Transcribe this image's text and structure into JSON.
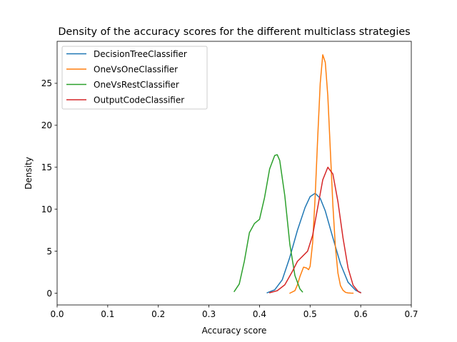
{
  "chart_data": {
    "type": "line",
    "title": "Density of the accuracy scores for the different multiclass strategies",
    "xlabel": "Accuracy score",
    "ylabel": "Density",
    "xlim": [
      0.0,
      0.7
    ],
    "ylim": [
      -1.4,
      30.0
    ],
    "xticks": [
      "0.0",
      "0.1",
      "0.2",
      "0.3",
      "0.4",
      "0.5",
      "0.6",
      "0.7"
    ],
    "yticks": [
      "0",
      "5",
      "10",
      "15",
      "20",
      "25"
    ],
    "grid": false,
    "legend_position": "top-left",
    "series": [
      {
        "name": "DecisionTreeClassifier",
        "color": "#1f77b4",
        "x": [
          0.415,
          0.43,
          0.445,
          0.46,
          0.475,
          0.49,
          0.5,
          0.51,
          0.52,
          0.53,
          0.545,
          0.56,
          0.575,
          0.59,
          0.6
        ],
        "y": [
          0.05,
          0.4,
          1.6,
          4.3,
          7.5,
          10.2,
          11.5,
          11.9,
          11.3,
          9.8,
          6.6,
          3.5,
          1.3,
          0.35,
          0.08
        ]
      },
      {
        "name": "OneVsOneClassifier",
        "color": "#ff7f0e",
        "x": [
          0.46,
          0.47,
          0.475,
          0.48,
          0.487,
          0.493,
          0.497,
          0.5,
          0.505,
          0.51,
          0.515,
          0.52,
          0.525,
          0.53,
          0.535,
          0.54,
          0.545,
          0.55,
          0.555,
          0.56,
          0.565,
          0.57,
          0.575,
          0.58,
          0.585
        ],
        "y": [
          0.0,
          0.3,
          1.0,
          2.0,
          3.1,
          3.0,
          2.8,
          3.2,
          6.0,
          11.5,
          18.5,
          25.0,
          28.4,
          27.5,
          23.5,
          17.0,
          10.5,
          5.5,
          2.4,
          0.9,
          0.35,
          0.1,
          0.03,
          0.01,
          0.0
        ]
      },
      {
        "name": "OneVsRestClassifier",
        "color": "#2ca02c",
        "x": [
          0.35,
          0.36,
          0.37,
          0.38,
          0.39,
          0.4,
          0.41,
          0.42,
          0.43,
          0.435,
          0.44,
          0.45,
          0.46,
          0.47,
          0.48,
          0.485
        ],
        "y": [
          0.2,
          1.1,
          3.8,
          7.2,
          8.3,
          8.8,
          11.4,
          14.8,
          16.4,
          16.5,
          15.8,
          11.6,
          5.8,
          2.1,
          0.5,
          0.15
        ]
      },
      {
        "name": "OutputCodeClassifier",
        "color": "#d62728",
        "x": [
          0.42,
          0.435,
          0.45,
          0.465,
          0.475,
          0.485,
          0.495,
          0.505,
          0.515,
          0.525,
          0.535,
          0.545,
          0.555,
          0.565,
          0.575,
          0.585,
          0.595,
          0.6
        ],
        "y": [
          0.05,
          0.3,
          1.0,
          2.6,
          3.8,
          4.4,
          5.0,
          6.9,
          10.2,
          13.5,
          15.0,
          14.2,
          10.9,
          6.6,
          3.0,
          0.95,
          0.2,
          0.05
        ]
      }
    ]
  }
}
